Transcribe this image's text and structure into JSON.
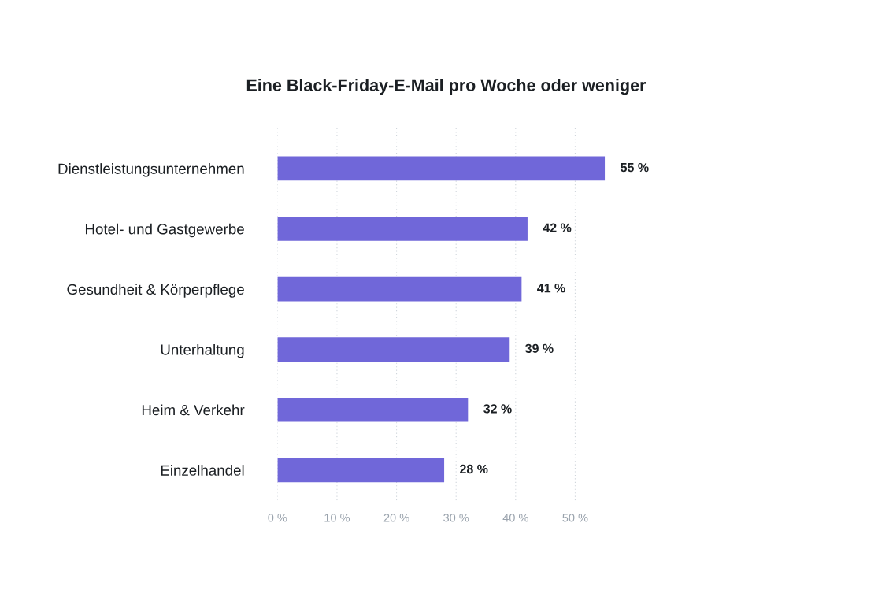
{
  "chart_data": {
    "type": "bar",
    "orientation": "horizontal",
    "title": "Eine Black-Friday-E-Mail pro Woche oder weniger",
    "categories": [
      "Dienstleistungsunternehmen",
      "Hotel- und Gastgewerbe",
      "Gesundheit & Körperpflege",
      "Unterhaltung",
      "Heim & Verkehr",
      "Einzelhandel"
    ],
    "values": [
      55,
      42,
      41,
      39,
      32,
      28
    ],
    "color": "#7067d9",
    "value_labels": [
      "55 %",
      "42 %",
      "41 %",
      "39 %",
      "32 %",
      "28 %"
    ],
    "xlim": [
      0,
      55
    ],
    "xticks": [
      {
        "value": 0,
        "label": "0 %"
      },
      {
        "value": 10,
        "label": "10 %"
      },
      {
        "value": 20,
        "label": "20 %"
      },
      {
        "value": 30,
        "label": "30 %"
      },
      {
        "value": 40,
        "label": "40 %"
      },
      {
        "value": 50,
        "label": "50 %"
      }
    ],
    "grid": "x"
  }
}
